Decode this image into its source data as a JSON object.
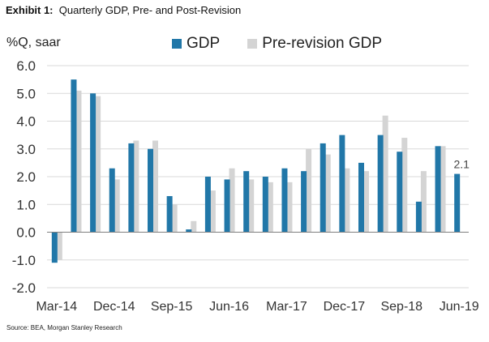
{
  "header": {
    "exhibit": "Exhibit 1:",
    "title": "Quarterly GDP, Pre- and Post-Revision",
    "unit": "%Q, saar",
    "source": "Source: BEA, Morgan Stanley Research"
  },
  "colors": {
    "gdp": "#2177A8",
    "pre": "#D4D4D4",
    "grid": "#D9D9D9",
    "axis": "#7F7F7F"
  },
  "chart_data": {
    "type": "bar",
    "title": "Quarterly GDP, Pre- and Post-Revision",
    "ylabel": "%Q, saar",
    "ylim": [
      -2.0,
      6.0
    ],
    "yticks": [
      "6.0",
      "5.0",
      "4.0",
      "3.0",
      "2.0",
      "1.0",
      "0.0",
      "-1.0",
      "-2.0"
    ],
    "ytick_values": [
      6,
      5,
      4,
      3,
      2,
      1,
      0,
      -1,
      -2
    ],
    "categories": [
      "Mar-14",
      "Jun-14",
      "Sep-14",
      "Dec-14",
      "Mar-15",
      "Jun-15",
      "Sep-15",
      "Dec-15",
      "Mar-16",
      "Jun-16",
      "Sep-16",
      "Dec-16",
      "Mar-17",
      "Jun-17",
      "Sep-17",
      "Dec-17",
      "Mar-18",
      "Jun-18",
      "Sep-18",
      "Dec-18",
      "Mar-19",
      "Jun-19"
    ],
    "xtick_labels": [
      "Mar-14",
      "Dec-14",
      "Sep-15",
      "Jun-16",
      "Mar-17",
      "Dec-17",
      "Sep-18",
      "Jun-19"
    ],
    "xtick_indices": [
      0,
      3,
      6,
      9,
      12,
      15,
      18,
      21
    ],
    "series": [
      {
        "name": "GDP",
        "values": [
          -1.1,
          5.5,
          5.0,
          2.3,
          3.2,
          3.0,
          1.3,
          0.1,
          2.0,
          1.9,
          2.2,
          2.0,
          2.3,
          2.2,
          3.2,
          3.5,
          2.5,
          3.5,
          2.9,
          1.1,
          3.1,
          2.1
        ]
      },
      {
        "name": "Pre-revision GDP",
        "values": [
          -1.0,
          5.1,
          4.9,
          1.9,
          3.3,
          3.3,
          1.0,
          0.4,
          1.5,
          2.3,
          1.9,
          1.8,
          1.8,
          3.0,
          2.8,
          2.3,
          2.2,
          4.2,
          3.4,
          2.2,
          3.1,
          null
        ]
      }
    ],
    "annotations": [
      {
        "category": "Jun-19",
        "text": "2.1"
      }
    ],
    "legend": "top",
    "grid": true
  }
}
